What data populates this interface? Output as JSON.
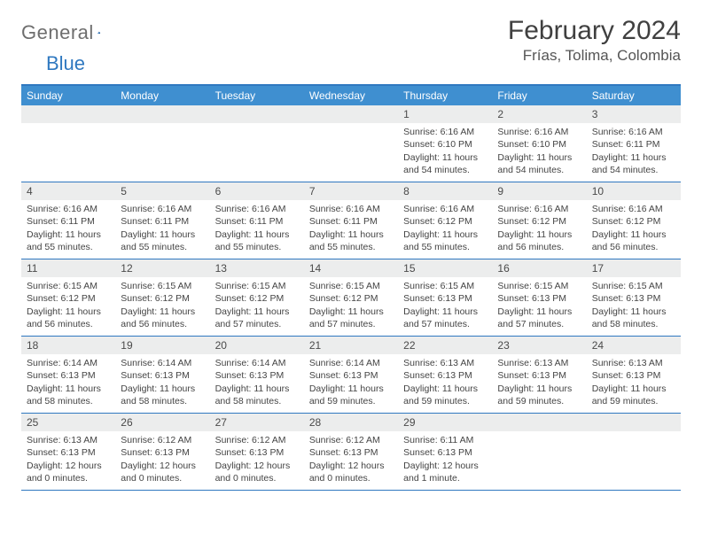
{
  "brand": {
    "part1": "General",
    "part2": "Blue"
  },
  "title": "February 2024",
  "location": "Frías, Tolima, Colombia",
  "colors": {
    "header_bar": "#3f8fd0",
    "rule": "#2f78c0",
    "daynum_bg": "#eceded",
    "text": "#444444"
  },
  "weekdays": [
    "Sunday",
    "Monday",
    "Tuesday",
    "Wednesday",
    "Thursday",
    "Friday",
    "Saturday"
  ],
  "weeks": [
    [
      null,
      null,
      null,
      null,
      {
        "d": "1",
        "sr": "6:16 AM",
        "ss": "6:10 PM",
        "dl": "11 hours and 54 minutes."
      },
      {
        "d": "2",
        "sr": "6:16 AM",
        "ss": "6:10 PM",
        "dl": "11 hours and 54 minutes."
      },
      {
        "d": "3",
        "sr": "6:16 AM",
        "ss": "6:11 PM",
        "dl": "11 hours and 54 minutes."
      }
    ],
    [
      {
        "d": "4",
        "sr": "6:16 AM",
        "ss": "6:11 PM",
        "dl": "11 hours and 55 minutes."
      },
      {
        "d": "5",
        "sr": "6:16 AM",
        "ss": "6:11 PM",
        "dl": "11 hours and 55 minutes."
      },
      {
        "d": "6",
        "sr": "6:16 AM",
        "ss": "6:11 PM",
        "dl": "11 hours and 55 minutes."
      },
      {
        "d": "7",
        "sr": "6:16 AM",
        "ss": "6:11 PM",
        "dl": "11 hours and 55 minutes."
      },
      {
        "d": "8",
        "sr": "6:16 AM",
        "ss": "6:12 PM",
        "dl": "11 hours and 55 minutes."
      },
      {
        "d": "9",
        "sr": "6:16 AM",
        "ss": "6:12 PM",
        "dl": "11 hours and 56 minutes."
      },
      {
        "d": "10",
        "sr": "6:16 AM",
        "ss": "6:12 PM",
        "dl": "11 hours and 56 minutes."
      }
    ],
    [
      {
        "d": "11",
        "sr": "6:15 AM",
        "ss": "6:12 PM",
        "dl": "11 hours and 56 minutes."
      },
      {
        "d": "12",
        "sr": "6:15 AM",
        "ss": "6:12 PM",
        "dl": "11 hours and 56 minutes."
      },
      {
        "d": "13",
        "sr": "6:15 AM",
        "ss": "6:12 PM",
        "dl": "11 hours and 57 minutes."
      },
      {
        "d": "14",
        "sr": "6:15 AM",
        "ss": "6:12 PM",
        "dl": "11 hours and 57 minutes."
      },
      {
        "d": "15",
        "sr": "6:15 AM",
        "ss": "6:13 PM",
        "dl": "11 hours and 57 minutes."
      },
      {
        "d": "16",
        "sr": "6:15 AM",
        "ss": "6:13 PM",
        "dl": "11 hours and 57 minutes."
      },
      {
        "d": "17",
        "sr": "6:15 AM",
        "ss": "6:13 PM",
        "dl": "11 hours and 58 minutes."
      }
    ],
    [
      {
        "d": "18",
        "sr": "6:14 AM",
        "ss": "6:13 PM",
        "dl": "11 hours and 58 minutes."
      },
      {
        "d": "19",
        "sr": "6:14 AM",
        "ss": "6:13 PM",
        "dl": "11 hours and 58 minutes."
      },
      {
        "d": "20",
        "sr": "6:14 AM",
        "ss": "6:13 PM",
        "dl": "11 hours and 58 minutes."
      },
      {
        "d": "21",
        "sr": "6:14 AM",
        "ss": "6:13 PM",
        "dl": "11 hours and 59 minutes."
      },
      {
        "d": "22",
        "sr": "6:13 AM",
        "ss": "6:13 PM",
        "dl": "11 hours and 59 minutes."
      },
      {
        "d": "23",
        "sr": "6:13 AM",
        "ss": "6:13 PM",
        "dl": "11 hours and 59 minutes."
      },
      {
        "d": "24",
        "sr": "6:13 AM",
        "ss": "6:13 PM",
        "dl": "11 hours and 59 minutes."
      }
    ],
    [
      {
        "d": "25",
        "sr": "6:13 AM",
        "ss": "6:13 PM",
        "dl": "12 hours and 0 minutes."
      },
      {
        "d": "26",
        "sr": "6:12 AM",
        "ss": "6:13 PM",
        "dl": "12 hours and 0 minutes."
      },
      {
        "d": "27",
        "sr": "6:12 AM",
        "ss": "6:13 PM",
        "dl": "12 hours and 0 minutes."
      },
      {
        "d": "28",
        "sr": "6:12 AM",
        "ss": "6:13 PM",
        "dl": "12 hours and 0 minutes."
      },
      {
        "d": "29",
        "sr": "6:11 AM",
        "ss": "6:13 PM",
        "dl": "12 hours and 1 minute."
      },
      null,
      null
    ]
  ],
  "labels": {
    "sunrise": "Sunrise:",
    "sunset": "Sunset:",
    "daylight": "Daylight:"
  }
}
